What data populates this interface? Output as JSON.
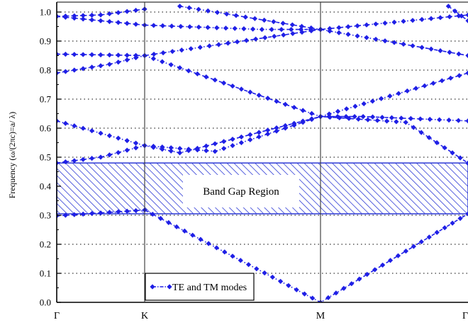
{
  "chart_data": {
    "type": "line",
    "title": "",
    "xlabel": "",
    "ylabel": "Frequency (ω/(2πc)=a/ λ)",
    "ylim": [
      0,
      1.0
    ],
    "yticks": [
      "0.0",
      "0.1",
      "0.2",
      "0.3",
      "0.4",
      "0.5",
      "0.6",
      "0.7",
      "0.8",
      "0.9",
      "1.0"
    ],
    "xticks": [
      {
        "label": "Γ",
        "x": 0
      },
      {
        "label": "K",
        "x": 1
      },
      {
        "label": "M",
        "x": 2.5
      },
      {
        "label": "Γ",
        "x": 4.23
      }
    ],
    "grid": "horizontal dotted",
    "marker_color": "#1f1fe6",
    "band_gap": {
      "label": "Band Gap Region",
      "y_range": [
        0.305,
        0.48
      ],
      "color": "#2e3ad6"
    },
    "legend": {
      "label": "TE and TM modes",
      "position": "bottom-center"
    },
    "series": [
      {
        "x": [
          0,
          1,
          2.5,
          4.23
        ],
        "y": [
          0.298,
          0.318,
          0.0,
          0.305
        ]
      },
      {
        "x": [
          0,
          0.5,
          1,
          1.6,
          2.5,
          3.5,
          4.23
        ],
        "y": [
          0.48,
          0.5,
          0.54,
          0.52,
          0.64,
          0.62,
          0.48
        ]
      },
      {
        "x": [
          0,
          1,
          1.3,
          2.5,
          3.0,
          4.23
        ],
        "y": [
          0.625,
          0.54,
          0.515,
          0.64,
          0.64,
          0.625
        ]
      },
      {
        "x": [
          0,
          0.6,
          1,
          2.5,
          4.23
        ],
        "y": [
          0.79,
          0.82,
          0.85,
          0.64,
          0.79
        ]
      },
      {
        "x": [
          0,
          1,
          2.5,
          4.23
        ],
        "y": [
          0.855,
          0.85,
          0.94,
          0.85
        ]
      },
      {
        "x": [
          0,
          1,
          2.0,
          2.5,
          4.23
        ],
        "y": [
          0.985,
          0.955,
          0.94,
          0.94,
          0.99
        ]
      },
      {
        "x": [
          0,
          0.5,
          1
        ],
        "y": [
          0.985,
          0.99,
          1.01
        ]
      },
      {
        "x": [
          1.3,
          2.5
        ],
        "y": [
          1.02,
          0.94
        ]
      },
      {
        "x": [
          4.0,
          4.23
        ],
        "y": [
          1.02,
          0.97
        ]
      }
    ]
  }
}
